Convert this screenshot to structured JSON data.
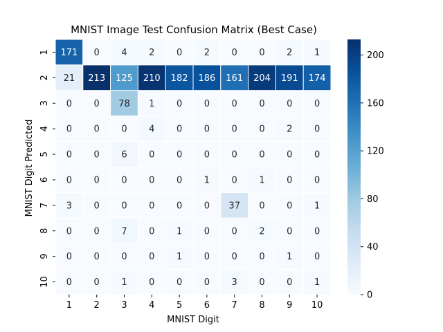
{
  "chart_data": {
    "type": "heatmap",
    "title": "MNIST Image Test Confusion Matrix (Best Case)",
    "xlabel": "MNIST Digit",
    "ylabel": "MNIST Digit Predicted",
    "x_categories": [
      "1",
      "2",
      "3",
      "4",
      "5",
      "6",
      "7",
      "8",
      "9",
      "10"
    ],
    "y_categories": [
      "1",
      "2",
      "3",
      "4",
      "5",
      "6",
      "7",
      "8",
      "9",
      "10"
    ],
    "values": [
      [
        171,
        0,
        4,
        2,
        0,
        2,
        0,
        0,
        2,
        1
      ],
      [
        21,
        213,
        125,
        210,
        182,
        186,
        161,
        204,
        191,
        174
      ],
      [
        0,
        0,
        78,
        1,
        0,
        0,
        0,
        0,
        0,
        0
      ],
      [
        0,
        0,
        0,
        4,
        0,
        0,
        0,
        0,
        2,
        0
      ],
      [
        0,
        0,
        6,
        0,
        0,
        0,
        0,
        0,
        0,
        0
      ],
      [
        0,
        0,
        0,
        0,
        0,
        1,
        0,
        1,
        0,
        0
      ],
      [
        3,
        0,
        0,
        0,
        0,
        0,
        37,
        0,
        0,
        1
      ],
      [
        0,
        0,
        7,
        0,
        1,
        0,
        0,
        2,
        0,
        0
      ],
      [
        0,
        0,
        0,
        0,
        1,
        0,
        0,
        0,
        1,
        0
      ],
      [
        0,
        0,
        1,
        0,
        0,
        0,
        3,
        0,
        0,
        1
      ]
    ],
    "color_range": [
      0,
      213
    ],
    "colorbar_ticks": [
      0,
      40,
      80,
      120,
      160,
      200
    ],
    "colormap": "Blues",
    "colors": {
      "low": "#f7fbff",
      "high": "#08306b"
    },
    "annotate": true
  }
}
